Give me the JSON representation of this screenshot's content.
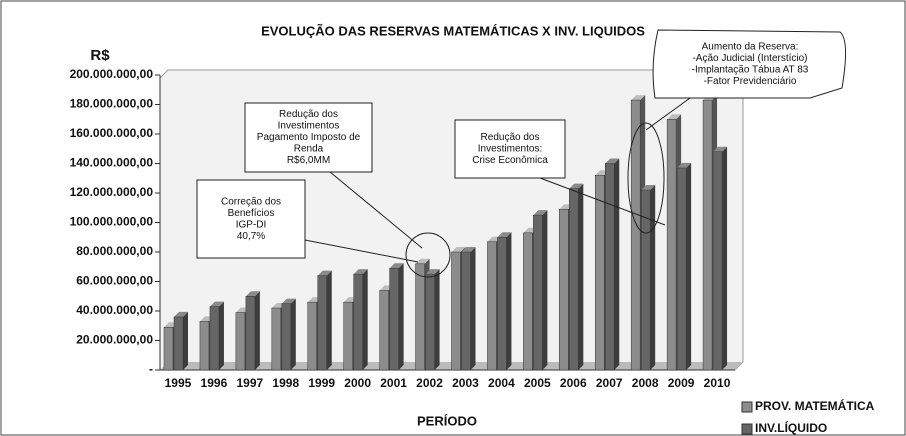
{
  "chart_data": {
    "type": "bar",
    "title": "EVOLUÇÃO DAS RESERVAS MATEMÁTICAS X INV. LIQUIDOS",
    "y_label": "R$",
    "x_label": "PERÍODO",
    "categories": [
      "1995",
      "1996",
      "1997",
      "1998",
      "1999",
      "2000",
      "2001",
      "2002",
      "2003",
      "2004",
      "2005",
      "2006",
      "2007",
      "2008",
      "2009",
      "2010"
    ],
    "series": [
      {
        "name": "PROV. MATEMÁTICA",
        "color": "#8c8c8c",
        "values": [
          29000000,
          33000000,
          39000000,
          42000000,
          46000000,
          46000000,
          54000000,
          72000000,
          80000000,
          87000000,
          93000000,
          109000000,
          132000000,
          183000000,
          170000000,
          183000000
        ]
      },
      {
        "name": "INV.LÍQUIDO",
        "color": "#666666",
        "values": [
          36000000,
          43000000,
          50000000,
          45000000,
          64000000,
          65000000,
          69000000,
          65000000,
          80000000,
          90000000,
          105000000,
          123000000,
          140000000,
          122000000,
          137000000,
          148000000
        ]
      }
    ],
    "ylim": [
      0,
      200000000
    ],
    "yticks": [
      {
        "value": 0,
        "label": "-"
      },
      {
        "value": 20000000,
        "label": "20.000.000,00"
      },
      {
        "value": 40000000,
        "label": "40.000.000,00"
      },
      {
        "value": 60000000,
        "label": "60.000.000,00"
      },
      {
        "value": 80000000,
        "label": "80.000.000,00"
      },
      {
        "value": 100000000,
        "label": "100.000.000,00"
      },
      {
        "value": 120000000,
        "label": "120.000.000,00"
      },
      {
        "value": 140000000,
        "label": "140.000.000,00"
      },
      {
        "value": 160000000,
        "label": "160.000.000,00"
      },
      {
        "value": 180000000,
        "label": "180.000.000,00"
      },
      {
        "value": 200000000,
        "label": "200.000.000,00"
      }
    ],
    "grid": false,
    "legend": "bottom-right",
    "annotations": [
      {
        "lines": [
          "Correção dos",
          "Benefícios",
          "IGP-DI",
          "40,7%"
        ]
      },
      {
        "lines": [
          "Redução dos",
          "Investimentos",
          "Pagamento Imposto de",
          "Renda",
          "R$6,0MM"
        ]
      },
      {
        "lines": [
          "Redução dos",
          "Investimentos:",
          "Crise Econômica"
        ]
      },
      {
        "lines": [
          "Aumento da Reserva:",
          "-Ação Judicial (Interstício)",
          "-Implantação Tábua AT 83",
          "-Fator Previdenciário"
        ]
      }
    ]
  }
}
